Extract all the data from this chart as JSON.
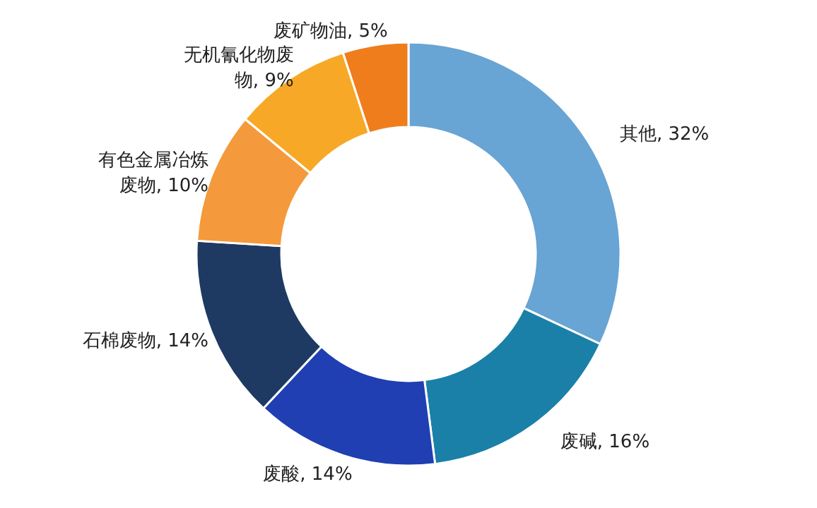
{
  "chart_data": {
    "type": "donut",
    "categories": [
      "其他",
      "废碱",
      "废酸",
      "石棉废物",
      "有色金属冶炼废物",
      "无机氰化物废物",
      "废矿物油"
    ],
    "values": [
      32,
      16,
      14,
      14,
      10,
      9,
      5
    ],
    "value_labels": [
      "32%",
      "16%",
      "14%",
      "14%",
      "10%",
      "9%",
      "5%"
    ],
    "colors": [
      "#68a4d4",
      "#1a80a8",
      "#1f3fb2",
      "#1e3a62",
      "#f49a3c",
      "#f7a826",
      "#f07d1c"
    ]
  }
}
